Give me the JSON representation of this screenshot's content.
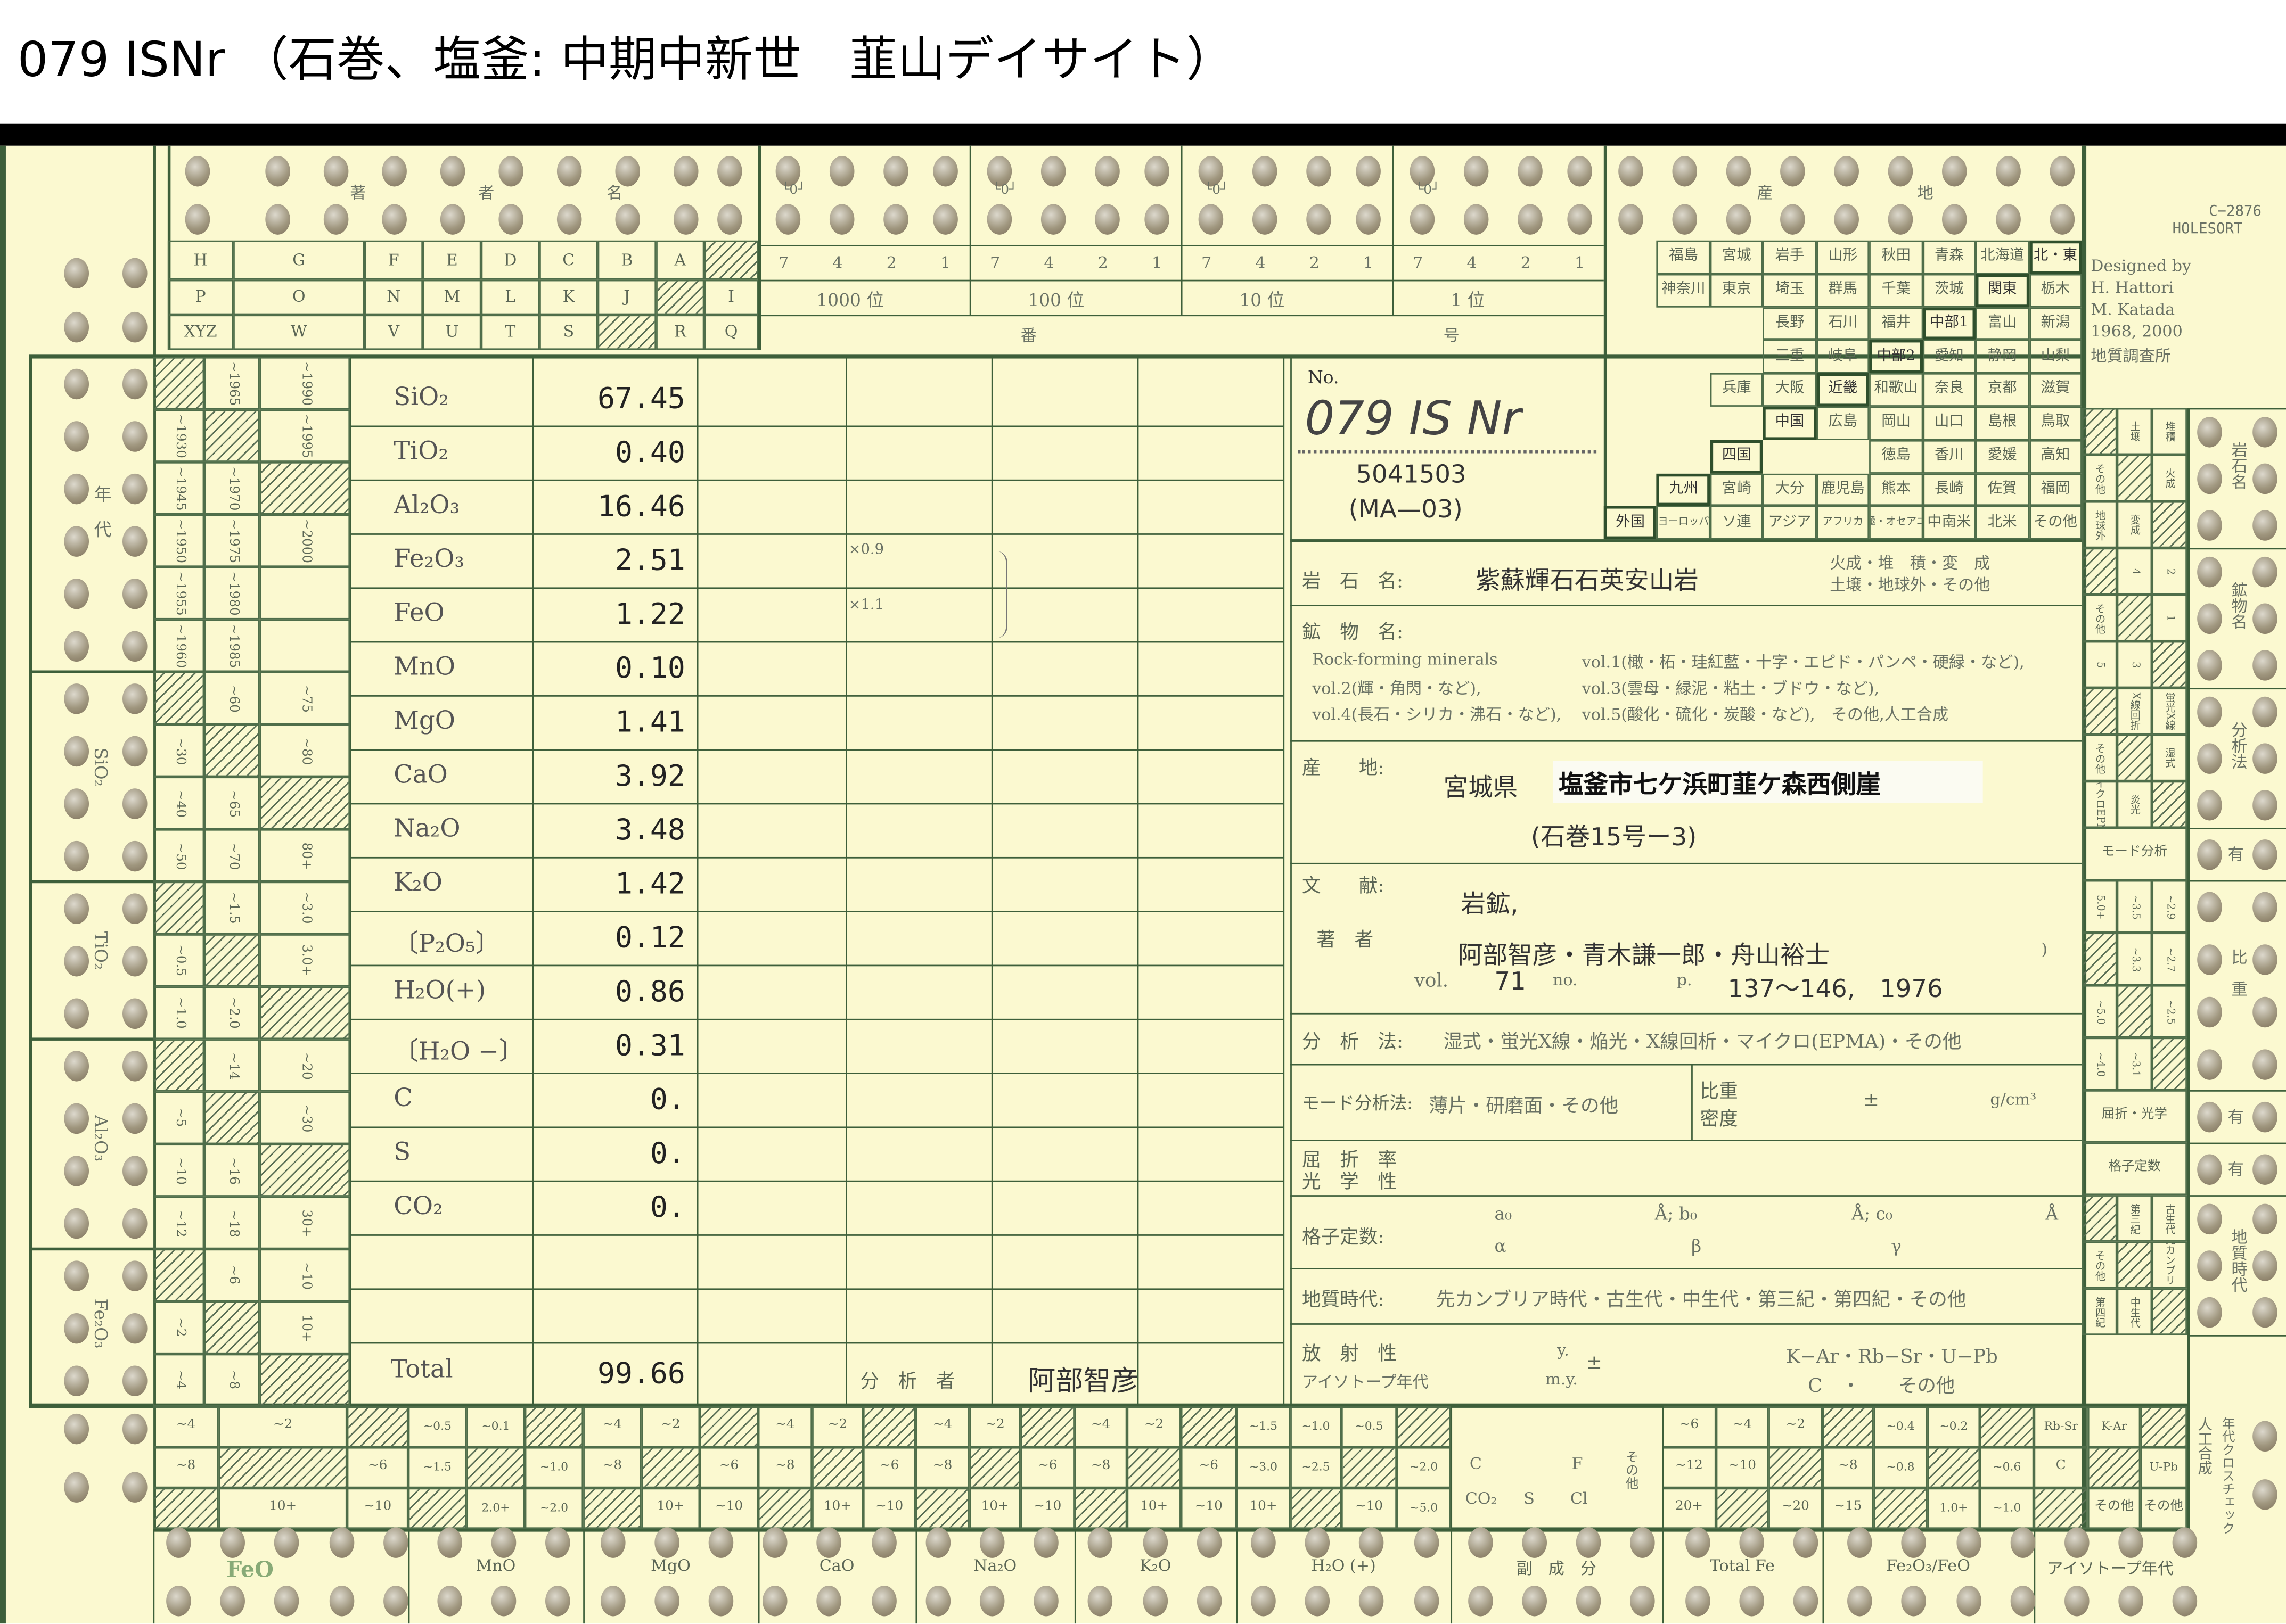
{
  "title": "079 ISNr （石巻、塩釜:  中期中新世　韮山デイサイト）",
  "card": {
    "code": "C−2876",
    "brand": "HOLESORT",
    "designed": [
      "Designed by",
      "H. Hattori",
      "M. Katada",
      "1968, 2000",
      "地質調査所"
    ]
  },
  "author_grid": {
    "header": [
      "著",
      "者",
      "名"
    ],
    "rows": [
      [
        "H",
        "G",
        "F",
        "E",
        "D",
        "C",
        "B",
        "A",
        null
      ],
      [
        "P",
        "O",
        "N",
        "M",
        "L",
        "K",
        "J",
        null,
        "I"
      ],
      [
        "XYZ",
        "W",
        "V",
        "U",
        "T",
        "S",
        null,
        "R",
        "Q"
      ]
    ]
  },
  "number_fields": {
    "marker": "└0┘",
    "groups": [
      {
        "bits": [
          "7",
          "4",
          "2",
          "1"
        ],
        "place": "1000 位"
      },
      {
        "bits": [
          "7",
          "4",
          "2",
          "1"
        ],
        "place": "100 位"
      },
      {
        "bits": [
          "7",
          "4",
          "2",
          "1"
        ],
        "place": "10 位"
      },
      {
        "bits": [
          "7",
          "4",
          "2",
          "1"
        ],
        "place": "1 位"
      }
    ],
    "bottom": [
      "番",
      "号"
    ]
  },
  "locality_index": {
    "header": [
      "産",
      "地"
    ],
    "rows": [
      [
        "",
        "福島",
        "宮城",
        "岩手",
        "山形",
        "秋田",
        "青森",
        "北海道",
        "北・東"
      ],
      [
        "",
        "神奈川",
        "東京",
        "埼玉",
        "群馬",
        "千葉",
        "茨城",
        "関東",
        "栃木"
      ],
      [
        "",
        "",
        "",
        "長野",
        "石川",
        "福井",
        "中部1",
        "富山",
        "新潟"
      ],
      [
        "",
        "",
        "",
        "三重",
        "岐阜",
        "中部2",
        "愛知",
        "静岡",
        "山梨"
      ],
      [
        "",
        "",
        "兵庫",
        "大阪",
        "近畿",
        "和歌山",
        "奈良",
        "京都",
        "滋賀"
      ],
      [
        "",
        "",
        "",
        "中国",
        "広島",
        "岡山",
        "山口",
        "島根",
        "鳥取"
      ],
      [
        "",
        "",
        "四国",
        "",
        "",
        "徳島",
        "香川",
        "愛媛",
        "高知"
      ],
      [
        "",
        "九州",
        "宮崎",
        "大分",
        "鹿児島",
        "熊本",
        "長崎",
        "佐賀",
        "福岡"
      ],
      [
        "外国",
        "ヨーロッパ",
        "ソ連",
        "アジア",
        "アフリカ",
        "南極・オセアニア",
        "中南米",
        "北米",
        "その他"
      ]
    ],
    "regions": [
      "北・東",
      "関東",
      "中部1",
      "中部2",
      "近畿",
      "中国",
      "四国",
      "九州",
      "外国"
    ]
  },
  "left_index": {
    "groups": [
      {
        "label": "年　代",
        "rows": 6
      },
      {
        "label": "SiO₂",
        "rows": 4
      },
      {
        "label": "TiO₂",
        "rows": 3
      },
      {
        "label": "Al₂O₃",
        "rows": 4
      },
      {
        "label": "Fe₂O₃",
        "rows": 3
      }
    ],
    "rows": [
      [
        null,
        "~1965",
        "~1990"
      ],
      [
        "~1930",
        null,
        "~1995"
      ],
      [
        "~1945",
        "~1970",
        null
      ],
      [
        "~1950",
        "~1975",
        "~2000"
      ],
      [
        "~1955",
        "~1980",
        ""
      ],
      [
        "~1960",
        "~1985",
        ""
      ],
      [
        null,
        "~60",
        "~75"
      ],
      [
        "~30",
        null,
        "~80"
      ],
      [
        "~40",
        "~65",
        null
      ],
      [
        "~50",
        "~70",
        "80+"
      ],
      [
        null,
        "~1.5",
        "~3.0"
      ],
      [
        "~0.5",
        null,
        "3.0+"
      ],
      [
        "~1.0",
        "~2.0",
        null
      ],
      [
        null,
        "~14",
        "~20"
      ],
      [
        "~5",
        null,
        "~30"
      ],
      [
        "~10",
        "~16",
        null
      ],
      [
        "~12",
        "~18",
        "30+"
      ],
      [
        null,
        "~6",
        "~10"
      ],
      [
        "~2",
        null,
        "10+"
      ],
      [
        "~4",
        "~8",
        null
      ]
    ]
  },
  "chemistry": {
    "rows": [
      {
        "name": "SiO₂",
        "value": "67.45"
      },
      {
        "name": "TiO₂",
        "value": "0.40"
      },
      {
        "name": "Al₂O₃",
        "value": "16.46"
      },
      {
        "name": "Fe₂O₃",
        "value": "2.51"
      },
      {
        "name": "FeO",
        "value": "1.22"
      },
      {
        "name": "MnO",
        "value": "0.10"
      },
      {
        "name": "MgO",
        "value": "1.41"
      },
      {
        "name": "CaO",
        "value": "3.92"
      },
      {
        "name": "Na₂O",
        "value": "3.48"
      },
      {
        "name": "K₂O",
        "value": "1.42"
      },
      {
        "name": "〔P₂O₅〕",
        "value": "0.12"
      },
      {
        "name": "H₂O(+)",
        "value": "0.86"
      },
      {
        "name": "〔H₂O −〕",
        "value": "0.31"
      },
      {
        "name": "C",
        "value": "0."
      },
      {
        "name": "S",
        "value": "0."
      },
      {
        "name": "CO₂",
        "value": "0."
      },
      {
        "name": "",
        "value": ""
      },
      {
        "name": "",
        "value": ""
      }
    ],
    "total_label": "Total",
    "total_value": "99.66",
    "notes": [
      "×0.9",
      "×1.1"
    ],
    "analyst_label": "分　析　者",
    "analyst": "阿部智彦"
  },
  "record": {
    "no_label": "No.",
    "no_value": "079 IS Nr",
    "sample_number": "5041503",
    "sample_code": "(MA—03)",
    "rock_name_label": "岩　石　名:",
    "rock_name": "紫蘇輝石石英安山岩",
    "rock_class": [
      "火成・堆　積・変　成",
      "土壌・地球外・その他"
    ],
    "mineral_label": "鉱　物　名:",
    "mineral_lines": [
      [
        "Rock-forming minerals",
        "vol.1(橄・柘・珪紅藍・十字・エピド・パンペ・硬緑・など),"
      ],
      [
        "vol.2(輝・角閃・など),",
        "vol.3(雲母・緑泥・粘土・ブドウ・など),"
      ],
      [
        "vol.4(長石・シリカ・沸石・など),",
        "vol.5(酸化・硫化・炭酸・など),　その他,人工合成"
      ]
    ],
    "locality_label": "産　　地:",
    "locality_pref": "宮城県",
    "locality_detail": "塩釜市七ケ浜町韮ケ森西側崖",
    "locality_map": "(石巻15号ー3)",
    "literature_label": "文　　献:",
    "journal": "岩鉱,",
    "author_label": "著　者",
    "authors": "阿部智彦・青木謙一郎・舟山裕士",
    "paren_close": ")",
    "vol_label": "vol.",
    "vol": "71",
    "no_small": "no.",
    "page_label": "p.",
    "pages_year": "137〜146,　1976",
    "analysis_label": "分　析　法:",
    "analysis_methods": "湿式・蛍光X線・焔光・X線回析・マイクロ(EPMA)・その他",
    "mode_label": "モード分析法:",
    "mode_methods": "薄片・研磨面・その他",
    "density_label": [
      "比重",
      "密度"
    ],
    "density_pm": "±",
    "density_unit": "g/cm³",
    "refraction_label": [
      "屈　折　率",
      "光　学　性"
    ],
    "lattice_label": "格子定数:",
    "lattice": [
      "a₀",
      "Å; b₀",
      "Å; c₀",
      "Å",
      "α",
      "β",
      "γ"
    ],
    "age_label": "地質時代:",
    "ages": "先カンブリア時代・古生代・中生代・第三紀・第四紀・その他",
    "radio_label": [
      "放　射　性",
      "アイソトープ年代"
    ],
    "radio_units": [
      "y.",
      "m.y.",
      "±"
    ],
    "radio_methods": [
      "K−Ar・Rb−Sr・U−Pb",
      "C　・　　その他"
    ]
  },
  "right_index": [
    {
      "label": "岩石名",
      "cells": [
        [
          null,
          "土壌",
          "堆積"
        ],
        [
          "その他",
          null,
          "火成"
        ],
        [
          "地球外",
          "変成",
          null
        ]
      ]
    },
    {
      "label": "鉱物名",
      "cells": [
        [
          null,
          "4",
          "2"
        ],
        [
          "その他",
          null,
          "1"
        ],
        [
          "5",
          "3",
          null
        ]
      ]
    },
    {
      "label": "分析法",
      "cells": [
        [
          null,
          "X線回折",
          "蛍光X線"
        ],
        [
          "その他",
          null,
          "湿式"
        ],
        [
          "マイクロEPMA",
          "炎光",
          null
        ]
      ]
    },
    {
      "label": "有",
      "wide": "モード分析"
    },
    {
      "label": "比　重",
      "cells": [
        [
          "5.0+",
          "~3.5",
          "~2.9"
        ],
        [
          null,
          "~3.3",
          "~2.7"
        ],
        [
          "~5.0",
          null,
          "~2.5"
        ],
        [
          "~4.0",
          "~3.1",
          null
        ]
      ]
    },
    {
      "label": "有",
      "wide": "屈折・光学"
    },
    {
      "label": "有",
      "wide": "格子定数"
    },
    {
      "label": "地質時代",
      "cells": [
        [
          null,
          "第三紀",
          "古生代"
        ],
        [
          "その他",
          null,
          "先カンブリア"
        ],
        [
          "第四紀",
          "中生代",
          null
        ]
      ]
    }
  ],
  "right_bottom_labels": [
    "人工合成",
    "年代クロスチェック"
  ],
  "bottom_index": {
    "columns": [
      [
        "~4",
        "~8",
        null
      ],
      [
        "~2",
        null,
        "10+"
      ],
      [
        null,
        "~6",
        "~10"
      ],
      [
        "~0.5",
        "~1.5",
        null
      ],
      [
        "~0.1",
        null,
        "2.0+"
      ],
      [
        null,
        "~1.0",
        "~2.0"
      ],
      [
        "~4",
        "~8",
        null
      ],
      [
        "~2",
        null,
        "10+"
      ],
      [
        null,
        "~6",
        "~10"
      ],
      [
        "~4",
        "~8",
        null
      ],
      [
        "~2",
        null,
        "10+"
      ],
      [
        null,
        "~6",
        "~10"
      ],
      [
        "~4",
        "~8",
        null
      ],
      [
        "~2",
        null,
        "10+"
      ],
      [
        null,
        "~6",
        "~10"
      ],
      [
        "~4",
        "~8",
        null
      ],
      [
        "~2",
        null,
        "10+"
      ],
      [
        null,
        "~6",
        "~10"
      ],
      [
        "~1.5",
        "~3.0",
        "10+"
      ],
      [
        "~1.0",
        "~2.5",
        null
      ],
      [
        "~0.5",
        null,
        "~10"
      ],
      [
        null,
        "~2.0",
        "~5.0"
      ],
      [
        "~6",
        "~12",
        "20+"
      ],
      [
        "~4",
        "~10",
        null
      ],
      [
        "~2",
        null,
        "~20"
      ],
      [
        null,
        "~8",
        "~15"
      ],
      [
        "~0.4",
        "~0.8",
        null
      ],
      [
        "~0.2",
        null,
        "1.0+"
      ],
      [
        null,
        "~0.6",
        "~1.0"
      ],
      [
        "Rb-Sr",
        "C",
        null
      ],
      [
        "K-Ar",
        null,
        "その他"
      ],
      [
        null,
        "U-Pb",
        "その他"
      ]
    ],
    "minor": [
      "C",
      "F",
      "CO₂",
      "S",
      "Cl",
      "その他"
    ],
    "labels": [
      "FeO",
      "MnO",
      "MgO",
      "CaO",
      "Na₂O",
      "K₂O",
      "H₂O (+)",
      "副　成　分",
      "Total Fe",
      "Fe₂O₃/FeO",
      "アイソトープ年代"
    ]
  }
}
